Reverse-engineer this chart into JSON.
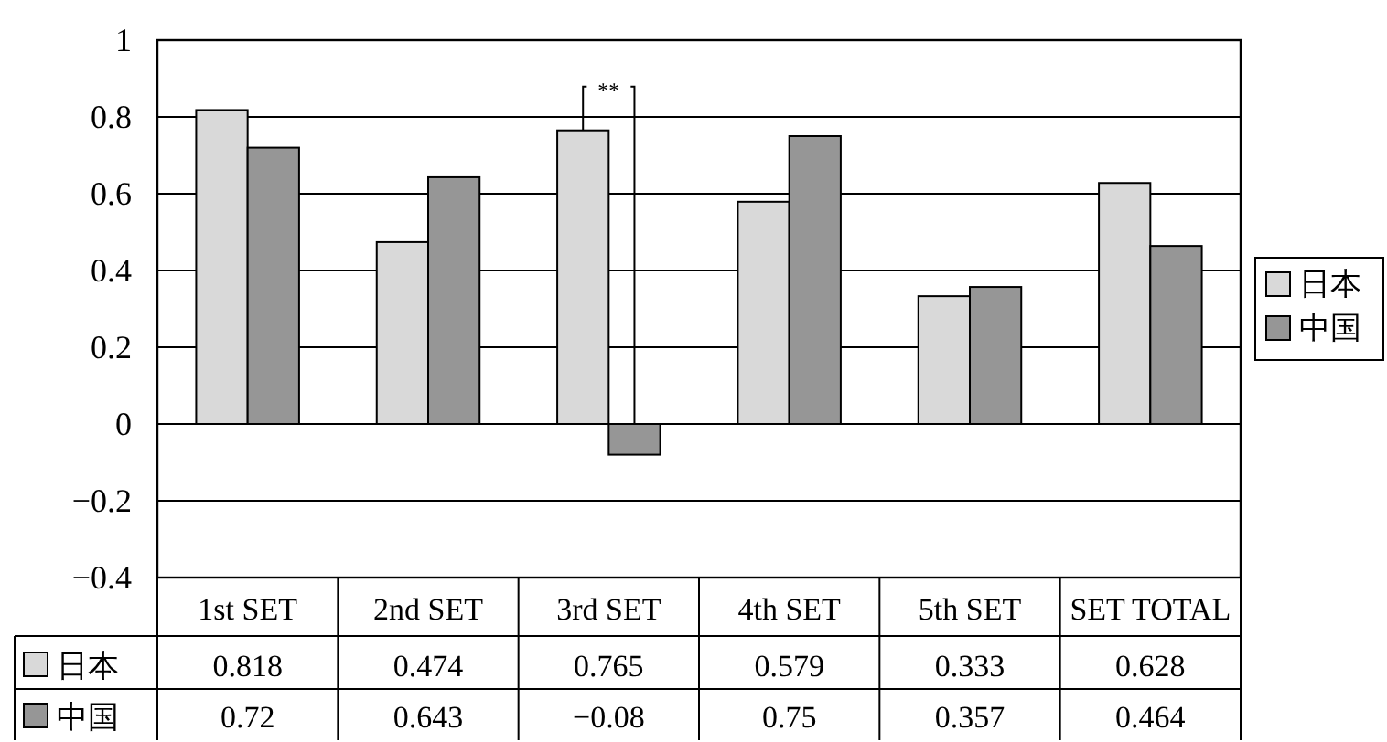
{
  "chart_data": {
    "type": "bar",
    "categories": [
      "1st SET",
      "2nd SET",
      "3rd SET",
      "4th SET",
      "5th SET",
      "SET TOTAL"
    ],
    "series": [
      {
        "name": "日本",
        "color": "#d9d9d9",
        "values": [
          0.818,
          0.474,
          0.765,
          0.579,
          0.333,
          0.628
        ]
      },
      {
        "name": "中国",
        "color": "#969696",
        "values": [
          0.72,
          0.643,
          -0.08,
          0.75,
          0.357,
          0.464
        ]
      }
    ],
    "ylim": [
      -0.4,
      1
    ],
    "yticks": [
      -0.4,
      -0.2,
      0,
      0.2,
      0.4,
      0.6,
      0.8,
      1
    ],
    "grid": "y",
    "legend": "right",
    "data_labels": true,
    "annotations": [
      {
        "text": "**",
        "x": "3rd SET",
        "y": 0.765
      }
    ]
  }
}
